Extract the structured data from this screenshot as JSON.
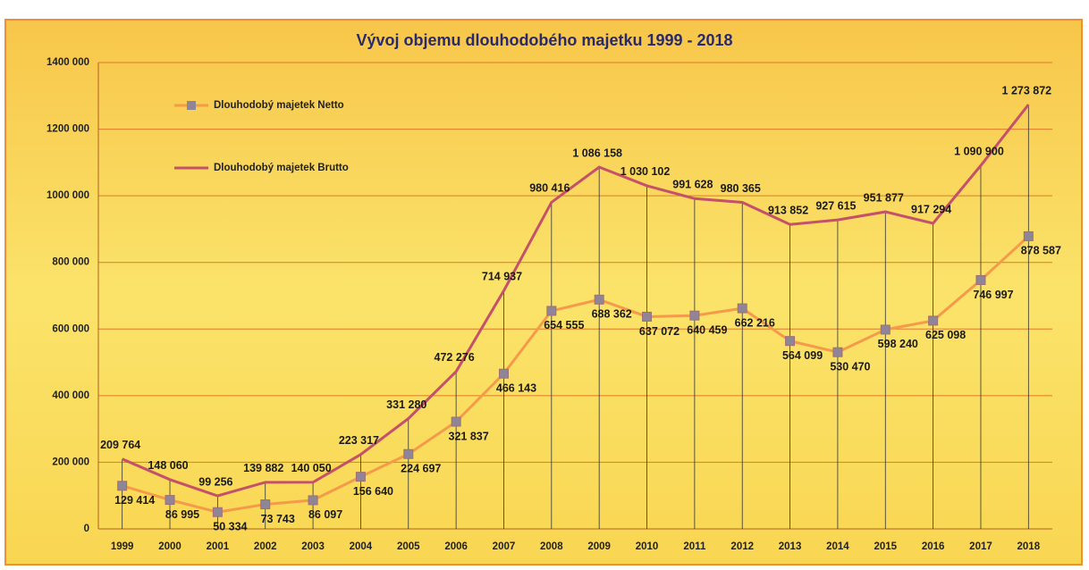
{
  "chart_data": {
    "type": "line",
    "title": "Vývoj objemu dlouhodobého majetku 1999 - 2018",
    "categories": [
      "1999",
      "2000",
      "2001",
      "2002",
      "2003",
      "2004",
      "2005",
      "2006",
      "2007",
      "2008",
      "2009",
      "2010",
      "2011",
      "2012",
      "2013",
      "2014",
      "2015",
      "2016",
      "2017",
      "2018"
    ],
    "series": [
      {
        "name": "Dlouhodobý majetek Netto",
        "color": "#f59a4a",
        "marker_color": "#8e8698",
        "values": [
          129414,
          86995,
          50334,
          73743,
          86097,
          156640,
          224697,
          321837,
          466143,
          654555,
          688362,
          637072,
          640459,
          662216,
          564099,
          530470,
          598240,
          625098,
          746997,
          878587
        ],
        "value_labels": [
          "129 414",
          "86 995",
          "50 334",
          "73 743",
          "86 097",
          "156 640",
          "224 697",
          "321 837",
          "466 143",
          "654 555",
          "688 362",
          "637 072",
          "640 459",
          "662 216",
          "564 099",
          "530 470",
          "598 240",
          "625 098",
          "746 997",
          "878 587"
        ]
      },
      {
        "name": "Dlouhodobý majetek Brutto",
        "color": "#c4506a",
        "values": [
          209764,
          148060,
          99256,
          139882,
          140050,
          223317,
          331280,
          472276,
          714937,
          980416,
          1086158,
          1030102,
          991628,
          980365,
          913852,
          927615,
          951877,
          917294,
          1090900,
          1273872
        ],
        "value_labels": [
          "209 764",
          "148 060",
          "99 256",
          "139 882",
          "140 050",
          "223 317",
          "331 280",
          "472 276",
          "714 937",
          "980 416",
          "1 086 158",
          "1 030 102",
          "991 628",
          "980 365",
          "913 852",
          "927 615",
          "951 877",
          "917 294",
          "1 090 900",
          "1 273 872"
        ]
      }
    ],
    "ylim": [
      0,
      1400000
    ],
    "yticks": [
      0,
      {
        "value": 200000,
        "label": "200 000"
      },
      {
        "value": 400000,
        "label": "400 000"
      },
      {
        "value": 600000,
        "label": "600 000"
      },
      {
        "value": 800000,
        "label": "800 000"
      },
      {
        "value": 1000000,
        "label": "1000 000"
      },
      {
        "value": 1200000,
        "label": "1200 000"
      },
      {
        "value": 1400000,
        "label": "1400 000"
      }
    ],
    "grid": true,
    "legend": "upper left",
    "drop_lines": true
  }
}
